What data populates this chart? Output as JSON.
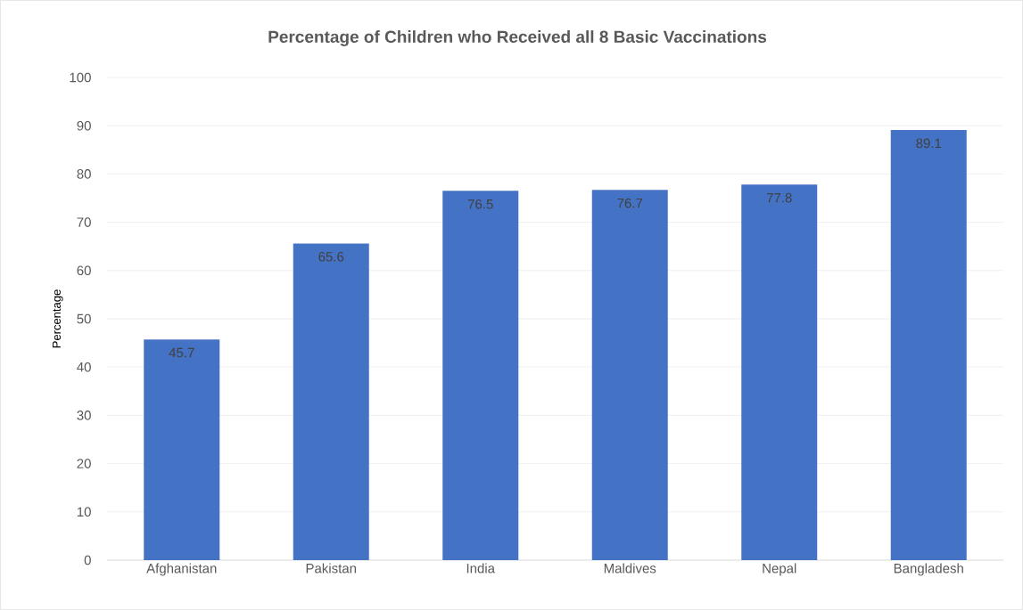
{
  "chart_data": {
    "type": "bar",
    "title": "Percentage of Children who Received all 8 Basic Vaccinations",
    "ylabel": "Percentage",
    "categories": [
      "Afghanistan",
      "Pakistan",
      "India",
      "Maldives",
      "Nepal",
      "Bangladesh"
    ],
    "values": [
      45.7,
      65.6,
      76.5,
      76.7,
      77.8,
      89.1
    ],
    "color": "#4472c4",
    "ylim": [
      0,
      100
    ],
    "yticks": [
      0,
      10,
      20,
      30,
      40,
      50,
      60,
      70,
      80,
      90,
      100
    ],
    "grid": "y",
    "data_labels": true
  }
}
